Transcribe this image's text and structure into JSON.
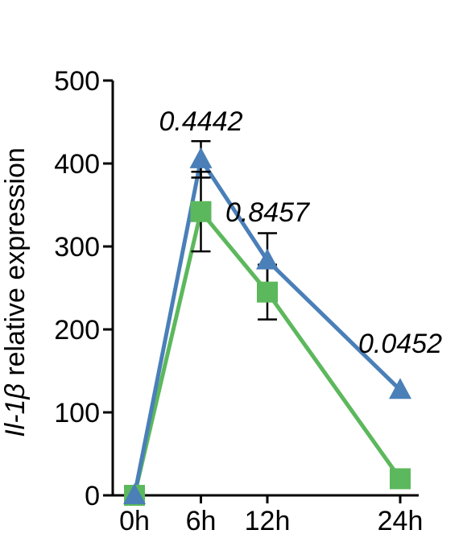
{
  "chart_data": {
    "type": "line",
    "title": "",
    "xlabel": "",
    "ylabel_gene": "Il-1β",
    "ylabel_rest": " relative expression",
    "x": [
      0,
      6,
      12,
      24
    ],
    "categories": [
      "0h",
      "6h",
      "12h",
      "24h"
    ],
    "ylim": [
      0,
      500
    ],
    "yticks": [
      0,
      100,
      200,
      300,
      400,
      500
    ],
    "grid": false,
    "legend": "none",
    "series": [
      {
        "marker": "square",
        "color": "#5cb85c",
        "values": [
          0,
          342,
          245,
          20
        ],
        "error": [
          0,
          48,
          33,
          0
        ]
      },
      {
        "marker": "triangle",
        "color": "#4a7fb8",
        "values": [
          0,
          405,
          283,
          127
        ],
        "error": [
          0,
          22,
          33,
          0
        ]
      }
    ],
    "annotations": [
      {
        "x": 6,
        "text": "0.4442"
      },
      {
        "x": 12,
        "text": "0.8457"
      },
      {
        "x": 24,
        "text": "0.0452"
      }
    ]
  }
}
